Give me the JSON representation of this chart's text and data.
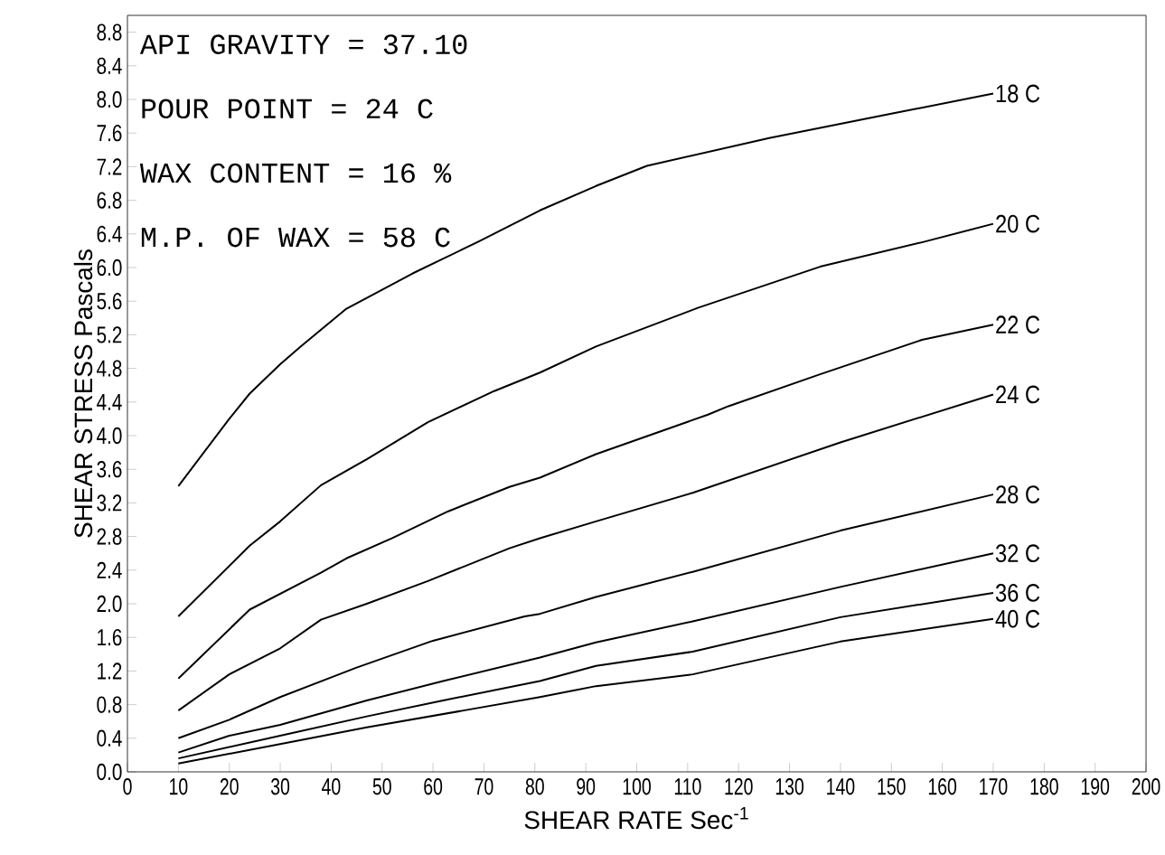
{
  "chart_data": {
    "type": "line",
    "xlabel": "SHEAR RATE  Sec$^{-1}$",
    "ylabel": "SHEAR STRESS  Pascals",
    "annotations": [
      "API GRAVITY = 37.10",
      "POUR POINT = 24 C",
      "WAX CONTENT = 16 %",
      "M.P. OF WAX = 58 C"
    ],
    "xlim": [
      0,
      200
    ],
    "ylim": [
      0,
      9.0
    ],
    "xticks": [
      0,
      10,
      20,
      30,
      40,
      50,
      60,
      70,
      80,
      90,
      100,
      110,
      120,
      130,
      140,
      150,
      160,
      170,
      180,
      190,
      200
    ],
    "yticks": [
      {
        "value": 0,
        "label": "0.0"
      },
      {
        "value": 0.4,
        "label": "0.4"
      },
      {
        "value": 0.8,
        "label": "0.8"
      },
      {
        "value": 1.2,
        "label": "1.2"
      },
      {
        "value": 1.6,
        "label": "1.6"
      },
      {
        "value": 2.0,
        "label": "2.0"
      },
      {
        "value": 2.4,
        "label": "2.4"
      },
      {
        "value": 2.8,
        "label": "2.8"
      },
      {
        "value": 3.2,
        "label": "3.2"
      },
      {
        "value": 3.6,
        "label": "3.6"
      },
      {
        "value": 4.0,
        "label": "4.0"
      },
      {
        "value": 4.4,
        "label": "4.4"
      },
      {
        "value": 4.8,
        "label": "4.8"
      },
      {
        "value": 5.2,
        "label": "5.2"
      },
      {
        "value": 5.6,
        "label": "5.6"
      },
      {
        "value": 6.0,
        "label": "6.0"
      },
      {
        "value": 6.4,
        "label": "6.4"
      },
      {
        "value": 6.8,
        "label": "6.8"
      },
      {
        "value": 7.2,
        "label": "7.2"
      },
      {
        "value": 7.6,
        "label": "7.6"
      },
      {
        "value": 8.0,
        "label": "8.0"
      },
      {
        "value": 8.4,
        "label": "8.4"
      },
      {
        "value": 8.8,
        "label": "8.8"
      }
    ],
    "grid": false,
    "legend": false,
    "marker": "none",
    "line_style": "solid",
    "series": [
      {
        "name": "18 C",
        "color": "#000000",
        "x": [
          10,
          20,
          24,
          30,
          34,
          43,
          56,
          69,
          81,
          92,
          102,
          126,
          150,
          170
        ],
        "values": [
          3.4,
          4.2,
          4.5,
          4.85,
          5.06,
          5.51,
          5.93,
          6.31,
          6.68,
          6.97,
          7.21,
          7.54,
          7.83,
          8.07
        ]
      },
      {
        "name": "20 C",
        "color": "#000000",
        "x": [
          10,
          24,
          30,
          38,
          47,
          59,
          72,
          81,
          92,
          112,
          136,
          156,
          170
        ],
        "values": [
          1.85,
          2.69,
          2.98,
          3.41,
          3.72,
          4.16,
          4.53,
          4.75,
          5.06,
          5.52,
          6.01,
          6.3,
          6.52
        ]
      },
      {
        "name": "22 C",
        "color": "#000000",
        "x": [
          10,
          24,
          38,
          43,
          52,
          63,
          75,
          81,
          92,
          114,
          118,
          136,
          156,
          170
        ],
        "values": [
          1.11,
          1.93,
          2.37,
          2.54,
          2.78,
          3.1,
          3.39,
          3.5,
          3.78,
          4.25,
          4.35,
          4.73,
          5.14,
          5.32
        ]
      },
      {
        "name": "24 C",
        "color": "#000000",
        "x": [
          10,
          20,
          30,
          38,
          47,
          59,
          75,
          81,
          92,
          111,
          140,
          170
        ],
        "values": [
          0.73,
          1.16,
          1.47,
          1.81,
          2.0,
          2.27,
          2.66,
          2.78,
          2.98,
          3.32,
          3.92,
          4.49
        ]
      },
      {
        "name": "28 C",
        "color": "#000000",
        "x": [
          10,
          20,
          30,
          45,
          60,
          78,
          81,
          92,
          111,
          140,
          170
        ],
        "values": [
          0.4,
          0.62,
          0.89,
          1.24,
          1.56,
          1.85,
          1.88,
          2.08,
          2.38,
          2.87,
          3.3
        ]
      },
      {
        "name": "32 C",
        "color": "#000000",
        "x": [
          10,
          20,
          30,
          47,
          62,
          81,
          92,
          111,
          140,
          170
        ],
        "values": [
          0.23,
          0.43,
          0.56,
          0.85,
          1.08,
          1.36,
          1.54,
          1.79,
          2.2,
          2.6
        ]
      },
      {
        "name": "36 C",
        "color": "#000000",
        "x": [
          10,
          30,
          47,
          62,
          81,
          92,
          111,
          140,
          170
        ],
        "values": [
          0.16,
          0.43,
          0.66,
          0.85,
          1.08,
          1.26,
          1.43,
          1.84,
          2.13
        ]
      },
      {
        "name": "40 C",
        "color": "#000000",
        "x": [
          10,
          30,
          47,
          66,
          81,
          92,
          111,
          140,
          170
        ],
        "values": [
          0.1,
          0.33,
          0.53,
          0.73,
          0.89,
          1.02,
          1.16,
          1.55,
          1.82
        ]
      }
    ]
  }
}
